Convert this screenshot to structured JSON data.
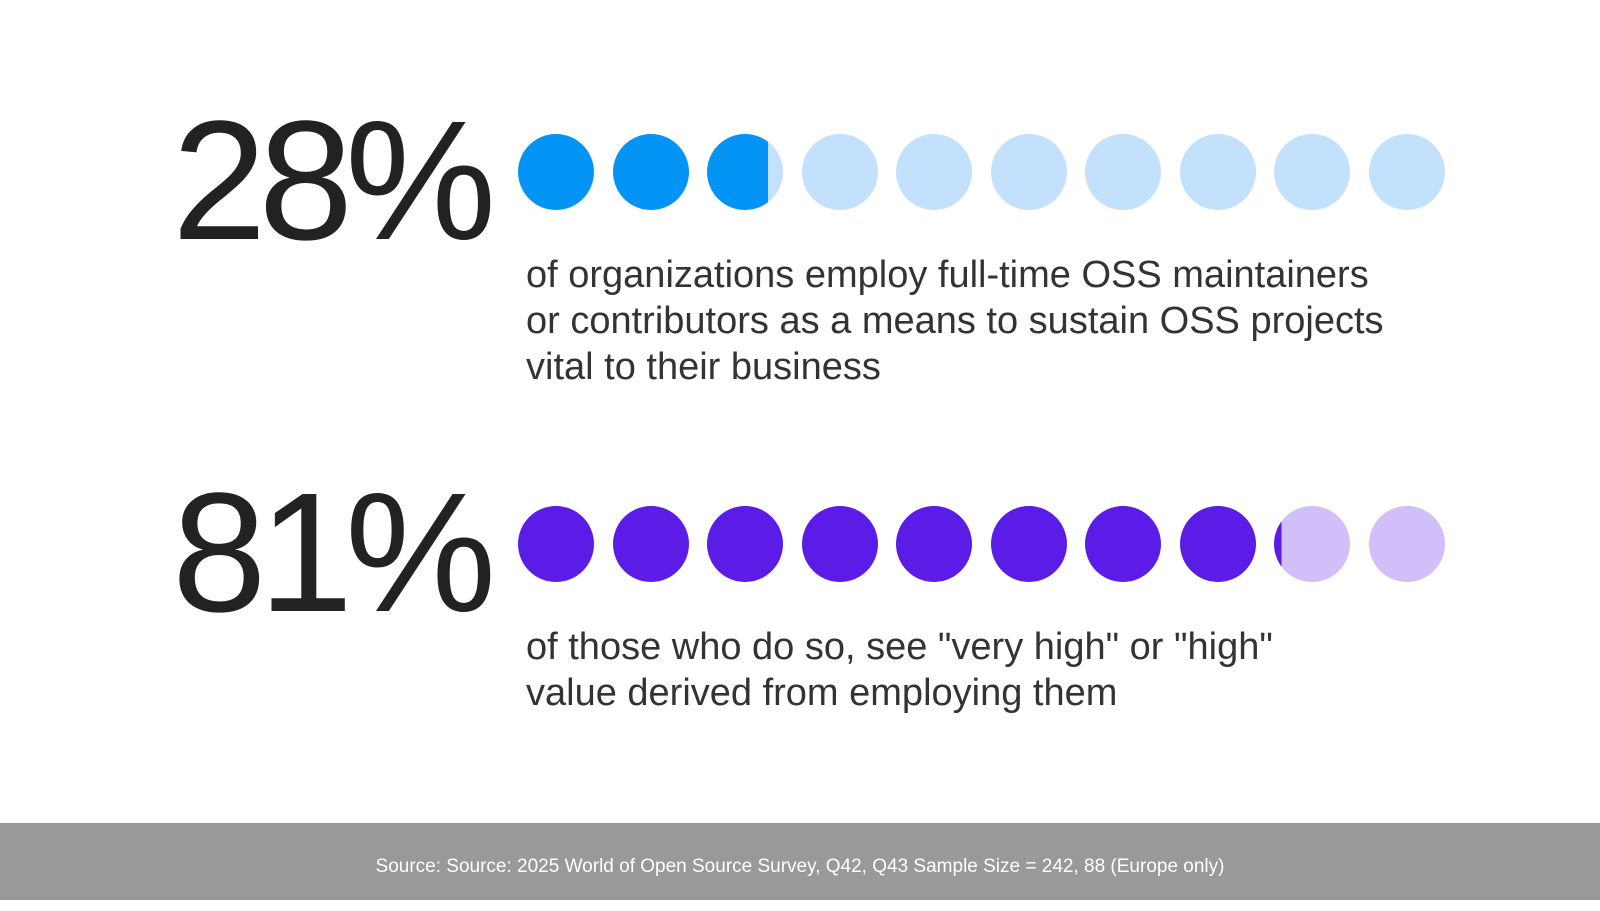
{
  "chart_data": [
    {
      "type": "pictograph",
      "value_label": "28%",
      "value": 28,
      "dot_count": 10,
      "filled_dots": 2.8,
      "filled_color": "#0494f6",
      "empty_color": "#c3e0fc",
      "description_lines": [
        "of organizations employ full-time OSS maintainers",
        "or contributors as a means to sustain OSS projects",
        "vital to their business"
      ]
    },
    {
      "type": "pictograph",
      "value_label": "81%",
      "value": 81,
      "dot_count": 10,
      "filled_dots": 8.1,
      "filled_color": "#5b1ce8",
      "empty_color": "#d0bff8",
      "description_lines": [
        "of those who do so, see \"very high\" or \"high\"",
        "value derived from employing them"
      ]
    }
  ],
  "footer": {
    "source_text": "Source: Source: 2025 World of Open Source Survey, Q42, Q43 Sample Size = 242, 88 (Europe only)"
  }
}
